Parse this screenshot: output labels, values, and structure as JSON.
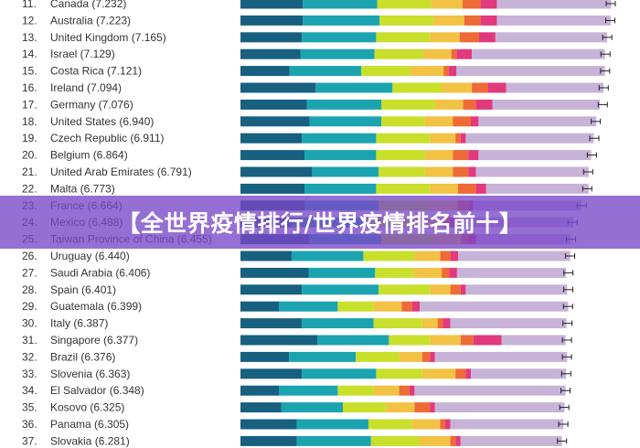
{
  "banner": {
    "title": "【全世界疫情排行/世界疫情排名前十】"
  },
  "chart_data": {
    "type": "bar",
    "stacked": true,
    "orientation": "horizontal",
    "xlim": [
      0,
      8
    ],
    "error_bars": true,
    "rows": [
      {
        "rank": "11.",
        "label": "Canada (7.232)",
        "score": 7.232,
        "segments": [
          1.22,
          1.45,
          1.05,
          0.62,
          0.35,
          0.32,
          2.23
        ]
      },
      {
        "rank": "12.",
        "label": "Australia (7.223)",
        "score": 7.223,
        "segments": [
          1.22,
          1.5,
          1.05,
          0.6,
          0.32,
          0.32,
          2.22
        ]
      },
      {
        "rank": "13.",
        "label": "United Kingdom (7.165)",
        "score": 7.165,
        "segments": [
          1.2,
          1.45,
          1.05,
          0.58,
          0.38,
          0.32,
          2.18
        ]
      },
      {
        "rank": "14.",
        "label": "Israel (7.129)",
        "score": 7.129,
        "segments": [
          1.17,
          1.45,
          0.95,
          0.55,
          0.1,
          0.3,
          2.6
        ]
      },
      {
        "rank": "15.",
        "label": "Costa Rica (7.121)",
        "score": 7.121,
        "segments": [
          0.96,
          1.4,
          0.95,
          0.66,
          0.1,
          0.15,
          2.9
        ]
      },
      {
        "rank": "16.",
        "label": "Ireland (7.094)",
        "score": 7.094,
        "segments": [
          1.47,
          1.5,
          0.95,
          0.6,
          0.32,
          0.35,
          1.9
        ]
      },
      {
        "rank": "17.",
        "label": "Germany (7.076)",
        "score": 7.076,
        "segments": [
          1.3,
          1.45,
          1.05,
          0.55,
          0.25,
          0.32,
          2.1
        ]
      },
      {
        "rank": "18.",
        "label": "United States (6.940)",
        "score": 6.94,
        "segments": [
          1.35,
          1.4,
          0.85,
          0.55,
          0.35,
          0.15,
          2.3
        ]
      },
      {
        "rank": "19.",
        "label": "Czech Republic (6.911)",
        "score": 6.911,
        "segments": [
          1.2,
          1.45,
          1.05,
          0.5,
          0.1,
          0.1,
          2.5
        ]
      },
      {
        "rank": "20.",
        "label": "Belgium (6.864)",
        "score": 6.864,
        "segments": [
          1.25,
          1.4,
          0.95,
          0.55,
          0.3,
          0.2,
          2.2
        ]
      },
      {
        "rank": "21.",
        "label": "United Arab Emirates (6.791)",
        "score": 6.791,
        "segments": [
          1.4,
          1.3,
          0.9,
          0.55,
          0.3,
          0.15,
          2.2
        ]
      },
      {
        "rank": "22.",
        "label": "Malta (6.773)",
        "score": 6.773,
        "segments": [
          1.25,
          1.4,
          1.05,
          0.55,
          0.35,
          0.2,
          2.0
        ]
      },
      {
        "rank": "23.",
        "label": "France (6.664)",
        "score": 6.664,
        "segments": [
          1.25,
          1.45,
          1.0,
          0.55,
          0.2,
          0.1,
          2.1
        ]
      },
      {
        "rank": "24.",
        "label": "Mexico (6.488)",
        "score": 6.488,
        "segments": [
          1.0,
          1.45,
          0.95,
          0.55,
          0.15,
          0.15,
          2.25
        ]
      },
      {
        "rank": "25.",
        "label": "Taiwan Province of China (6.455)",
        "score": 6.455,
        "segments": [
          1.35,
          1.4,
          1.0,
          0.55,
          0.15,
          0.15,
          1.85
        ]
      },
      {
        "rank": "26.",
        "label": "Uruguay (6.440)",
        "score": 6.44,
        "segments": [
          1.0,
          1.4,
          1.0,
          0.5,
          0.2,
          0.15,
          2.19
        ]
      },
      {
        "rank": "27.",
        "label": "Saudi Arabia (6.406)",
        "score": 6.406,
        "segments": [
          1.33,
          1.3,
          0.75,
          0.55,
          0.15,
          0.15,
          2.13
        ]
      },
      {
        "rank": "28.",
        "label": "Spain (6.401)",
        "score": 6.401,
        "segments": [
          1.2,
          1.5,
          1.0,
          0.4,
          0.2,
          0.1,
          1.98
        ]
      },
      {
        "rank": "29.",
        "label": "Guatemala (6.399)",
        "score": 6.399,
        "segments": [
          0.75,
          1.15,
          0.7,
          0.55,
          0.2,
          0.15,
          2.9
        ]
      },
      {
        "rank": "30.",
        "label": "Italy (6.387)",
        "score": 6.387,
        "segments": [
          1.2,
          1.4,
          0.95,
          0.3,
          0.1,
          0.15,
          2.27
        ]
      },
      {
        "rank": "31.",
        "label": "Singapore (6.377)",
        "score": 6.377,
        "segments": [
          1.5,
          1.4,
          0.8,
          0.6,
          0.25,
          0.55,
          1.25
        ]
      },
      {
        "rank": "32.",
        "label": "Brazil (6.376)",
        "score": 6.376,
        "segments": [
          0.95,
          1.3,
          0.85,
          0.45,
          0.15,
          0.1,
          2.58
        ]
      },
      {
        "rank": "33.",
        "label": "Slovenia (6.363)",
        "score": 6.363,
        "segments": [
          1.2,
          1.45,
          0.9,
          0.65,
          0.2,
          0.1,
          1.86
        ]
      },
      {
        "rank": "34.",
        "label": "El Salvador (6.348)",
        "score": 6.348,
        "segments": [
          0.75,
          1.15,
          0.7,
          0.5,
          0.2,
          0.1,
          2.95
        ]
      },
      {
        "rank": "35.",
        "label": "Kosovo (6.325)",
        "score": 6.325,
        "segments": [
          0.8,
          1.2,
          0.85,
          0.55,
          0.3,
          0.1,
          2.53
        ]
      },
      {
        "rank": "36.",
        "label": "Panama (6.305)",
        "score": 6.305,
        "segments": [
          1.1,
          1.4,
          0.85,
          0.55,
          0.1,
          0.1,
          2.21
        ]
      },
      {
        "rank": "37.",
        "label": "Slovakia (6.281)",
        "score": 6.281,
        "segments": [
          1.1,
          1.45,
          0.95,
          0.6,
          0.1,
          0.1,
          1.98
        ]
      }
    ]
  },
  "colors": {
    "segments": [
      "#17607f",
      "#1ba4b0",
      "#c8df2c",
      "#f2c245",
      "#ee6a37",
      "#e13a7c",
      "#c8b3d8"
    ],
    "text": "#333333",
    "whisker": "#222222"
  }
}
